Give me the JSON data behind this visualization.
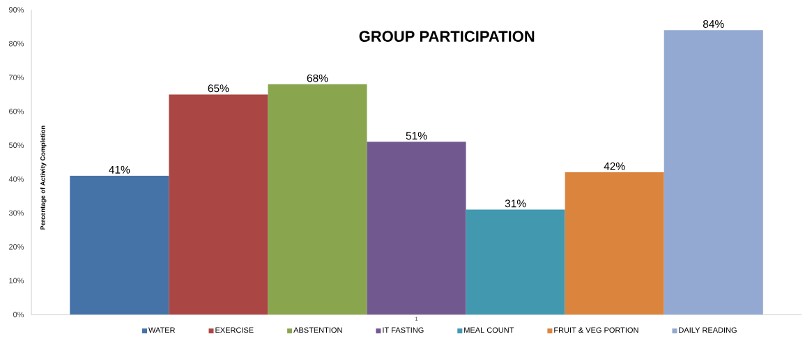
{
  "chart_data": {
    "type": "bar",
    "title": "GROUP PARTICIPATION",
    "ylabel": "Percentage of Activity Completion",
    "categories": [
      "1"
    ],
    "series": [
      {
        "name": "WATER",
        "color": "#4572a7",
        "values": [
          41
        ],
        "value_labels": [
          "41%"
        ]
      },
      {
        "name": "EXERCISE",
        "color": "#aa4643",
        "values": [
          65
        ],
        "value_labels": [
          "65%"
        ]
      },
      {
        "name": "ABSTENTION",
        "color": "#89a54e",
        "values": [
          68
        ],
        "value_labels": [
          "68%"
        ]
      },
      {
        "name": "IT FASTING",
        "color": "#71588f",
        "values": [
          51
        ],
        "value_labels": [
          "51%"
        ]
      },
      {
        "name": "MEAL COUNT",
        "color": "#4198af",
        "values": [
          31
        ],
        "value_labels": [
          "31%"
        ]
      },
      {
        "name": "FRUIT & VEG PORTION",
        "color": "#db843d",
        "values": [
          42
        ],
        "value_labels": [
          "42%"
        ]
      },
      {
        "name": "DAILY READING",
        "color": "#93a9d1",
        "values": [
          84
        ],
        "value_labels": [
          "84%"
        ]
      }
    ],
    "ylim": [
      0,
      90
    ],
    "yticks": [
      {
        "value": 0,
        "label": "0%"
      },
      {
        "value": 10,
        "label": "10%"
      },
      {
        "value": 20,
        "label": "20%"
      },
      {
        "value": 30,
        "label": "30%"
      },
      {
        "value": 40,
        "label": "40%"
      },
      {
        "value": 50,
        "label": "50%"
      },
      {
        "value": 60,
        "label": "60%"
      },
      {
        "value": 70,
        "label": "70%"
      },
      {
        "value": 80,
        "label": "80%"
      },
      {
        "value": 90,
        "label": "90%"
      }
    ],
    "legend": "bottom",
    "grid": false
  }
}
